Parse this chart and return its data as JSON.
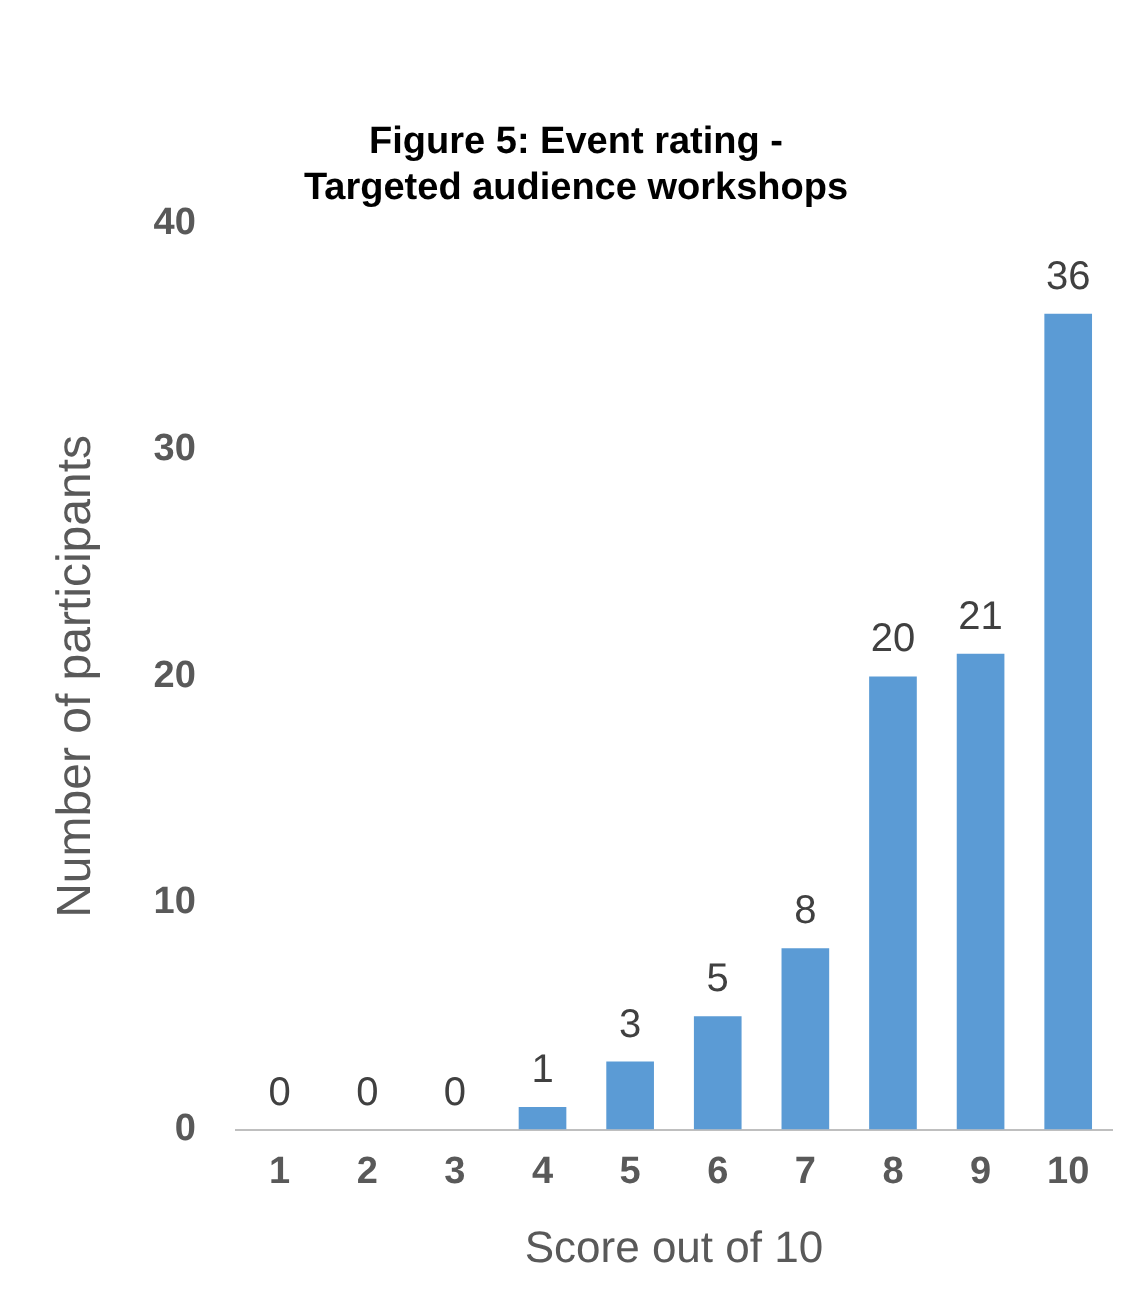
{
  "chart_data": {
    "type": "bar",
    "title": "Figure 5: Event rating -\nTargeted audience workshops",
    "xlabel": "Score out of 10",
    "ylabel": "Number of participants",
    "categories": [
      "1",
      "2",
      "3",
      "4",
      "5",
      "6",
      "7",
      "8",
      "9",
      "10"
    ],
    "values": [
      0,
      0,
      0,
      1,
      3,
      5,
      8,
      20,
      21,
      36
    ],
    "color": "#5b9bd5",
    "ylim": [
      0,
      40
    ],
    "yticks": [
      0,
      10,
      20,
      30,
      40
    ],
    "grid": false,
    "data_labels": true
  }
}
